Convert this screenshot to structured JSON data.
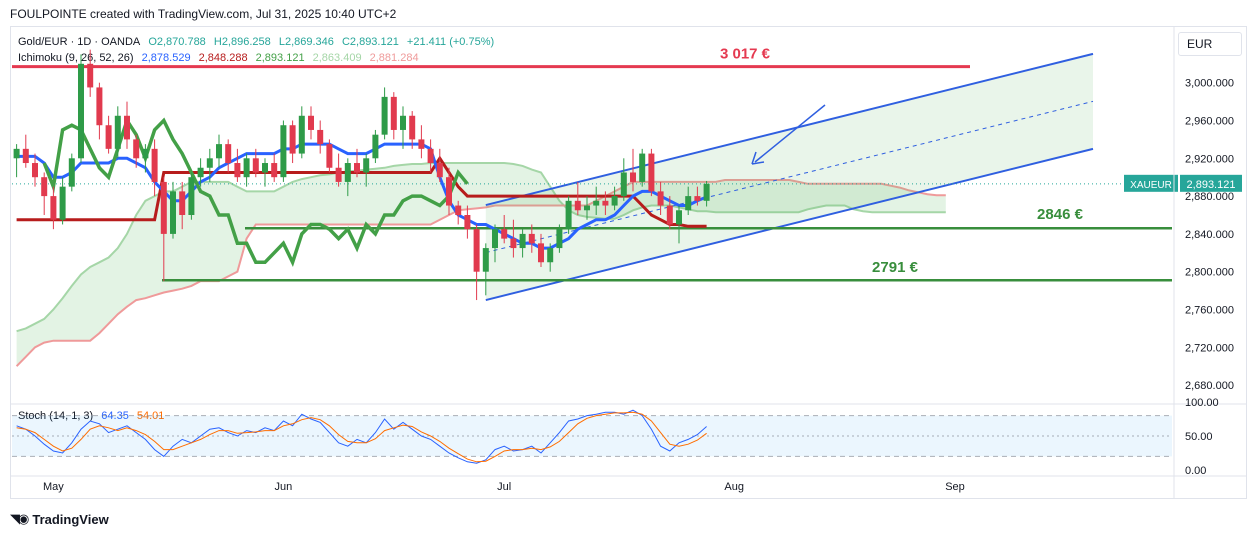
{
  "header": {
    "text": "FOULPOINTE created with TradingView.com, Jul 31, 2025 10:40 UTC+2"
  },
  "legend_main": {
    "symbol": "Gold/EUR · 1D · OANDA",
    "open": "O2,870.788",
    "high": "H2,896.258",
    "low": "L2,869.346",
    "close": "C2,893.121",
    "change": "+21.411 (+0.75%)"
  },
  "legend_ichimoku": {
    "name": "Ichimoku (9, 26, 52, 26)",
    "v1": "2,878.529",
    "v2": "2,848.288",
    "v3": "2,893.121",
    "v4": "2,863.409",
    "v5": "2,881.284"
  },
  "legend_stoch": {
    "name": "Stoch (14, 1, 3)",
    "k": "64.35",
    "d": "54.01"
  },
  "currency": "EUR",
  "ticker_label": "XAUEUR",
  "price_label": "2,893.121",
  "colors": {
    "up": "#26a69a",
    "down": "#ef5350",
    "up_candle": "#2e9b48",
    "down_candle": "#e13a4e",
    "tenkan": "#2962ff",
    "kijun": "#b71c1c",
    "chikou": "#43a047",
    "span_a": "#a5d6a7",
    "span_b": "#ef9a9a",
    "channel": "#2f5fe0",
    "resistance": "#e53950",
    "support": "#388e3c",
    "stoch_k": "#2962ff",
    "stoch_d": "#ff6d00"
  },
  "footer": "TradingView",
  "chart_data": [
    {
      "type": "candlestick",
      "title": "Gold/EUR · 1D · OANDA",
      "x_axis": {
        "ticks": [
          "May",
          "Jun",
          "Jul",
          "Aug",
          "Sep"
        ]
      },
      "y_axis": {
        "range": [
          2660,
          3060
        ],
        "ticks": [
          "3,000.000",
          "2,960.000",
          "2,920.000",
          "2,880.000",
          "2,840.000",
          "2,800.000",
          "2,760.000",
          "2,720.000",
          "2,680.000"
        ]
      },
      "candles": [
        {
          "o": 2920,
          "h": 2935,
          "l": 2900,
          "c": 2930
        },
        {
          "o": 2930,
          "h": 2945,
          "l": 2910,
          "c": 2915
        },
        {
          "o": 2915,
          "h": 2925,
          "l": 2890,
          "c": 2900
        },
        {
          "o": 2900,
          "h": 2905,
          "l": 2860,
          "c": 2880
        },
        {
          "o": 2880,
          "h": 2890,
          "l": 2845,
          "c": 2855
        },
        {
          "o": 2855,
          "h": 2900,
          "l": 2850,
          "c": 2890
        },
        {
          "o": 2890,
          "h": 2925,
          "l": 2885,
          "c": 2920
        },
        {
          "o": 2920,
          "h": 3030,
          "l": 2915,
          "c": 3020
        },
        {
          "o": 3020,
          "h": 3035,
          "l": 2985,
          "c": 2995
        },
        {
          "o": 2995,
          "h": 3000,
          "l": 2940,
          "c": 2955
        },
        {
          "o": 2955,
          "h": 2965,
          "l": 2925,
          "c": 2930
        },
        {
          "o": 2930,
          "h": 2975,
          "l": 2920,
          "c": 2965
        },
        {
          "o": 2965,
          "h": 2980,
          "l": 2930,
          "c": 2940
        },
        {
          "o": 2940,
          "h": 2945,
          "l": 2910,
          "c": 2920
        },
        {
          "o": 2920,
          "h": 2935,
          "l": 2905,
          "c": 2930
        },
        {
          "o": 2930,
          "h": 2940,
          "l": 2880,
          "c": 2895
        },
        {
          "o": 2895,
          "h": 2900,
          "l": 2790,
          "c": 2840
        },
        {
          "o": 2840,
          "h": 2895,
          "l": 2835,
          "c": 2885
        },
        {
          "o": 2885,
          "h": 2895,
          "l": 2845,
          "c": 2860
        },
        {
          "o": 2860,
          "h": 2905,
          "l": 2855,
          "c": 2900
        },
        {
          "o": 2900,
          "h": 2920,
          "l": 2890,
          "c": 2910
        },
        {
          "o": 2910,
          "h": 2930,
          "l": 2895,
          "c": 2920
        },
        {
          "o": 2920,
          "h": 2945,
          "l": 2910,
          "c": 2935
        },
        {
          "o": 2935,
          "h": 2940,
          "l": 2905,
          "c": 2915
        },
        {
          "o": 2915,
          "h": 2930,
          "l": 2895,
          "c": 2900
        },
        {
          "o": 2900,
          "h": 2925,
          "l": 2890,
          "c": 2920
        },
        {
          "o": 2920,
          "h": 2930,
          "l": 2900,
          "c": 2905
        },
        {
          "o": 2905,
          "h": 2920,
          "l": 2890,
          "c": 2915
        },
        {
          "o": 2915,
          "h": 2925,
          "l": 2895,
          "c": 2900
        },
        {
          "o": 2900,
          "h": 2960,
          "l": 2895,
          "c": 2955
        },
        {
          "o": 2955,
          "h": 2960,
          "l": 2915,
          "c": 2925
        },
        {
          "o": 2925,
          "h": 2975,
          "l": 2920,
          "c": 2965
        },
        {
          "o": 2965,
          "h": 2975,
          "l": 2940,
          "c": 2950
        },
        {
          "o": 2950,
          "h": 2960,
          "l": 2925,
          "c": 2935
        },
        {
          "o": 2935,
          "h": 2940,
          "l": 2905,
          "c": 2910
        },
        {
          "o": 2910,
          "h": 2925,
          "l": 2890,
          "c": 2895
        },
        {
          "o": 2895,
          "h": 2920,
          "l": 2880,
          "c": 2915
        },
        {
          "o": 2915,
          "h": 2930,
          "l": 2900,
          "c": 2905
        },
        {
          "o": 2905,
          "h": 2925,
          "l": 2890,
          "c": 2920
        },
        {
          "o": 2920,
          "h": 2950,
          "l": 2915,
          "c": 2945
        },
        {
          "o": 2945,
          "h": 2995,
          "l": 2940,
          "c": 2985
        },
        {
          "o": 2985,
          "h": 2990,
          "l": 2940,
          "c": 2950
        },
        {
          "o": 2950,
          "h": 2975,
          "l": 2930,
          "c": 2965
        },
        {
          "o": 2965,
          "h": 2970,
          "l": 2930,
          "c": 2940
        },
        {
          "o": 2940,
          "h": 2955,
          "l": 2920,
          "c": 2930
        },
        {
          "o": 2930,
          "h": 2940,
          "l": 2905,
          "c": 2915
        },
        {
          "o": 2915,
          "h": 2930,
          "l": 2895,
          "c": 2900
        },
        {
          "o": 2900,
          "h": 2910,
          "l": 2860,
          "c": 2870
        },
        {
          "o": 2870,
          "h": 2875,
          "l": 2850,
          "c": 2860
        },
        {
          "o": 2860,
          "h": 2870,
          "l": 2835,
          "c": 2845
        },
        {
          "o": 2845,
          "h": 2850,
          "l": 2770,
          "c": 2800
        },
        {
          "o": 2800,
          "h": 2830,
          "l": 2775,
          "c": 2825
        },
        {
          "o": 2825,
          "h": 2850,
          "l": 2810,
          "c": 2845
        },
        {
          "o": 2845,
          "h": 2860,
          "l": 2830,
          "c": 2835
        },
        {
          "o": 2835,
          "h": 2855,
          "l": 2815,
          "c": 2825
        },
        {
          "o": 2825,
          "h": 2845,
          "l": 2815,
          "c": 2840
        },
        {
          "o": 2840,
          "h": 2850,
          "l": 2820,
          "c": 2830
        },
        {
          "o": 2830,
          "h": 2840,
          "l": 2805,
          "c": 2810
        },
        {
          "o": 2810,
          "h": 2830,
          "l": 2800,
          "c": 2825
        },
        {
          "o": 2825,
          "h": 2850,
          "l": 2820,
          "c": 2845
        },
        {
          "o": 2845,
          "h": 2880,
          "l": 2840,
          "c": 2875
        },
        {
          "o": 2875,
          "h": 2895,
          "l": 2860,
          "c": 2865
        },
        {
          "o": 2865,
          "h": 2880,
          "l": 2855,
          "c": 2870
        },
        {
          "o": 2870,
          "h": 2890,
          "l": 2860,
          "c": 2875
        },
        {
          "o": 2875,
          "h": 2885,
          "l": 2860,
          "c": 2870
        },
        {
          "o": 2870,
          "h": 2890,
          "l": 2865,
          "c": 2880
        },
        {
          "o": 2880,
          "h": 2920,
          "l": 2875,
          "c": 2905
        },
        {
          "o": 2905,
          "h": 2930,
          "l": 2885,
          "c": 2895
        },
        {
          "o": 2895,
          "h": 2930,
          "l": 2890,
          "c": 2925
        },
        {
          "o": 2925,
          "h": 2930,
          "l": 2880,
          "c": 2885
        },
        {
          "o": 2885,
          "h": 2895,
          "l": 2860,
          "c": 2870
        },
        {
          "o": 2870,
          "h": 2880,
          "l": 2845,
          "c": 2850
        },
        {
          "o": 2850,
          "h": 2870,
          "l": 2830,
          "c": 2865
        },
        {
          "o": 2865,
          "h": 2890,
          "l": 2860,
          "c": 2880
        },
        {
          "o": 2880,
          "h": 2890,
          "l": 2870,
          "c": 2875
        },
        {
          "o": 2875,
          "h": 2896,
          "l": 2869,
          "c": 2893
        }
      ],
      "tenkan": [
        2922,
        2922,
        2922,
        2915,
        2900,
        2900,
        2905,
        2915,
        2915,
        2915,
        2915,
        2920,
        2920,
        2915,
        2910,
        2895,
        2885,
        2875,
        2875,
        2885,
        2895,
        2900,
        2910,
        2915,
        2920,
        2925,
        2925,
        2925,
        2925,
        2930,
        2930,
        2935,
        2935,
        2935,
        2935,
        2930,
        2925,
        2925,
        2925,
        2930,
        2935,
        2935,
        2935,
        2935,
        2935,
        2930,
        2900,
        2875,
        2860,
        2855,
        2850,
        2850,
        2845,
        2840,
        2835,
        2830,
        2830,
        2825,
        2825,
        2830,
        2835,
        2845,
        2850,
        2855,
        2855,
        2860,
        2870,
        2880,
        2885,
        2885,
        2880,
        2875,
        2870,
        2870,
        2875,
        2879
      ],
      "kijun": [
        2855,
        2855,
        2855,
        2855,
        2855,
        2855,
        2855,
        2855,
        2855,
        2855,
        2855,
        2855,
        2855,
        2855,
        2855,
        2855,
        2905,
        2905,
        2905,
        2905,
        2905,
        2905,
        2905,
        2905,
        2905,
        2905,
        2905,
        2905,
        2905,
        2905,
        2905,
        2905,
        2905,
        2905,
        2905,
        2905,
        2905,
        2905,
        2905,
        2905,
        2905,
        2905,
        2905,
        2905,
        2905,
        2905,
        2920,
        2905,
        2890,
        2880,
        2880,
        2880,
        2880,
        2880,
        2880,
        2880,
        2880,
        2880,
        2880,
        2880,
        2880,
        2880,
        2880,
        2880,
        2880,
        2880,
        2880,
        2880,
        2870,
        2860,
        2855,
        2850,
        2850,
        2848,
        2848,
        2848
      ],
      "chikou": [
        2915,
        2890,
        2950,
        2955,
        2950,
        2930,
        2910,
        2900,
        2930,
        2960,
        2945,
        2920,
        2950,
        2960,
        2940,
        2925,
        2905,
        2885,
        2880,
        2860,
        2860,
        2830,
        2830,
        2810,
        2810,
        2820,
        2830,
        2810,
        2840,
        2850,
        2850,
        2845,
        2835,
        2845,
        2825,
        2850,
        2840,
        2860,
        2860,
        2875,
        2880,
        2880,
        2875,
        2870,
        2880,
        2905,
        2893
      ],
      "span_a_ahead": [
        2737,
        2740,
        2745,
        2750,
        2760,
        2772,
        2785,
        2797,
        2805,
        2810,
        2815,
        2825,
        2840,
        2860,
        2875,
        2880,
        2885,
        2885,
        2890,
        2895,
        2895,
        2895,
        2895,
        2895,
        2890,
        2885,
        2885,
        2885,
        2885,
        2890,
        2895,
        2898,
        2900,
        2902,
        2903,
        2905,
        2906,
        2907,
        2908,
        2909,
        2910,
        2912,
        2913,
        2914,
        2914,
        2915,
        2915,
        2915,
        2915,
        2915,
        2915,
        2915,
        2915,
        2915,
        2914,
        2912,
        2908,
        2905,
        2890,
        2875,
        2865,
        2860,
        2858,
        2857,
        2856,
        2856,
        2860,
        2865,
        2868,
        2870,
        2870,
        2870,
        2868,
        2866,
        2864,
        2864,
        2863,
        2863,
        2863,
        2863,
        2863,
        2863,
        2863,
        2863,
        2863,
        2863,
        2866,
        2868,
        2870,
        2870,
        2870,
        2866,
        2864,
        2863,
        2863,
        2863,
        2863,
        2863,
        2863,
        2863,
        2863,
        2863
      ],
      "span_b_ahead": [
        2700,
        2710,
        2720,
        2725,
        2727,
        2727,
        2727,
        2727,
        2727,
        2735,
        2745,
        2755,
        2763,
        2770,
        2772,
        2775,
        2778,
        2780,
        2782,
        2785,
        2790,
        2790,
        2790,
        2795,
        2800,
        2835,
        2850,
        2850,
        2850,
        2850,
        2850,
        2850,
        2850,
        2850,
        2850,
        2850,
        2850,
        2850,
        2850,
        2850,
        2850,
        2850,
        2850,
        2850,
        2850,
        2850,
        2855,
        2860,
        2865,
        2866,
        2867,
        2868,
        2870,
        2870,
        2870,
        2870,
        2870,
        2870,
        2870,
        2870,
        2870,
        2870,
        2870,
        2875,
        2880,
        2885,
        2890,
        2895,
        2895,
        2895,
        2895,
        2895,
        2895,
        2895,
        2895,
        2895,
        2895,
        2897,
        2897,
        2897,
        2897,
        2897,
        2897,
        2897,
        2897,
        2895,
        2893,
        2893,
        2893,
        2893,
        2893,
        2893,
        2893,
        2893,
        2893,
        2891,
        2889,
        2886,
        2884,
        2882,
        2881,
        2881
      ],
      "annotations": [
        {
          "type": "hline",
          "value": 3017,
          "label": "3 017 €",
          "color": "#e53950"
        },
        {
          "type": "hline",
          "value": 2846,
          "label": "2846 €",
          "color": "#388e3c"
        },
        {
          "type": "hline",
          "value": 2791,
          "label": "2791 €",
          "color": "#388e3c"
        },
        {
          "type": "channel",
          "start": {
            "bar": 51,
            "price": 2770
          },
          "end": {
            "bar": 117,
            "price": 2930
          },
          "offset": 95
        }
      ]
    },
    {
      "type": "line",
      "title": "Stoch (14, 1, 3)",
      "y_axis": {
        "range": [
          0,
          100
        ],
        "ticks": [
          "100.00",
          "50.00",
          "0.00"
        ]
      },
      "bands": [
        20,
        50,
        80
      ],
      "series": [
        {
          "name": "K",
          "values": [
            65,
            60,
            50,
            38,
            28,
            25,
            40,
            60,
            72,
            68,
            55,
            60,
            65,
            55,
            45,
            30,
            20,
            35,
            45,
            40,
            50,
            60,
            62,
            55,
            50,
            58,
            55,
            62,
            58,
            72,
            65,
            82,
            75,
            70,
            55,
            40,
            35,
            45,
            40,
            55,
            75,
            60,
            70,
            60,
            50,
            45,
            35,
            25,
            18,
            12,
            10,
            15,
            30,
            35,
            28,
            30,
            35,
            25,
            40,
            55,
            72,
            75,
            80,
            82,
            85,
            85,
            82,
            88,
            80,
            60,
            35,
            28,
            40,
            45,
            52,
            64
          ]
        },
        {
          "name": "D",
          "values": [
            62,
            60,
            55,
            45,
            35,
            28,
            32,
            45,
            60,
            65,
            62,
            58,
            62,
            58,
            52,
            42,
            30,
            30,
            35,
            40,
            45,
            52,
            58,
            58,
            54,
            55,
            56,
            58,
            58,
            65,
            68,
            74,
            77,
            74,
            65,
            52,
            42,
            40,
            40,
            46,
            58,
            62,
            66,
            64,
            56,
            50,
            42,
            32,
            24,
            16,
            12,
            13,
            20,
            28,
            30,
            30,
            32,
            30,
            34,
            42,
            55,
            68,
            76,
            80,
            82,
            84,
            84,
            85,
            82,
            72,
            55,
            38,
            35,
            38,
            44,
            54
          ]
        }
      ]
    }
  ]
}
